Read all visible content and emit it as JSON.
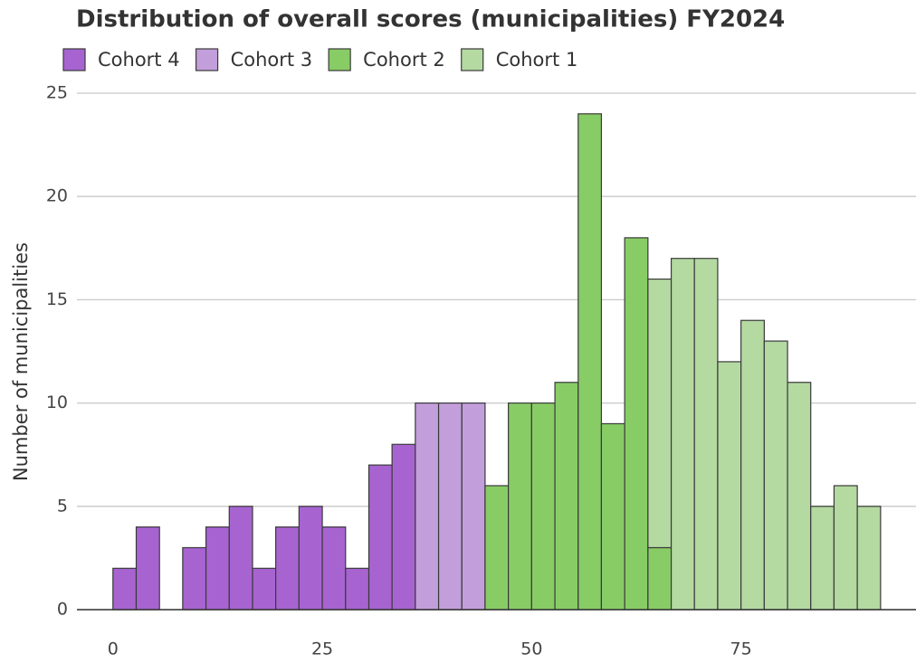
{
  "chart_data": {
    "type": "histogram",
    "title": "Distribution of overall scores (municipalities) FY2024",
    "y_label": "Number of municipalities",
    "bins": [
      0,
      2.78,
      5.56,
      8.33,
      11.11,
      13.89,
      16.67,
      19.44,
      22.22,
      25,
      27.78,
      30.56,
      33.33,
      36.11,
      38.89,
      41.67,
      44.44,
      47.22,
      50,
      52.78,
      55.56,
      58.33,
      61.11,
      63.89,
      66.67,
      69.44,
      72.22,
      75,
      77.78,
      80.56,
      83.33,
      86.11,
      88.89,
      91.67
    ],
    "series": [
      {
        "name": "Cohort 4",
        "color": "#a764d1",
        "values": [
          2,
          4,
          0,
          3,
          4,
          5,
          2,
          4,
          5,
          4,
          2,
          7,
          8,
          0,
          0,
          0,
          0,
          0,
          0,
          0,
          0,
          0,
          0,
          0,
          0,
          0,
          0,
          0,
          0,
          0,
          0,
          0,
          0
        ]
      },
      {
        "name": "Cohort 3",
        "color": "#c29fdb",
        "values": [
          0,
          0,
          0,
          0,
          0,
          0,
          0,
          0,
          0,
          0,
          0,
          0,
          0,
          10,
          10,
          10,
          0,
          0,
          0,
          0,
          0,
          0,
          0,
          0,
          0,
          0,
          0,
          0,
          0,
          0,
          0,
          0,
          0
        ]
      },
      {
        "name": "Cohort 2",
        "color": "#88cc66",
        "values": [
          0,
          0,
          0,
          0,
          0,
          0,
          0,
          0,
          0,
          0,
          0,
          0,
          0,
          0,
          0,
          0,
          6,
          10,
          10,
          11,
          24,
          9,
          18,
          3,
          0,
          0,
          0,
          0,
          0,
          0,
          0,
          0,
          0
        ]
      },
      {
        "name": "Cohort 1",
        "color": "#b4d9a1",
        "values": [
          0,
          0,
          0,
          0,
          0,
          0,
          0,
          0,
          0,
          0,
          0,
          0,
          0,
          0,
          0,
          0,
          0,
          0,
          0,
          0,
          0,
          0,
          0,
          13,
          17,
          17,
          12,
          14,
          13,
          11,
          5,
          6,
          5
        ]
      }
    ],
    "xlim": [
      -4.3,
      95.9
    ],
    "xticks": [
      0,
      25,
      50,
      75
    ],
    "ylim": [
      0,
      25
    ],
    "yticks": [
      0,
      5,
      10,
      15,
      20,
      25
    ],
    "grid": true
  }
}
